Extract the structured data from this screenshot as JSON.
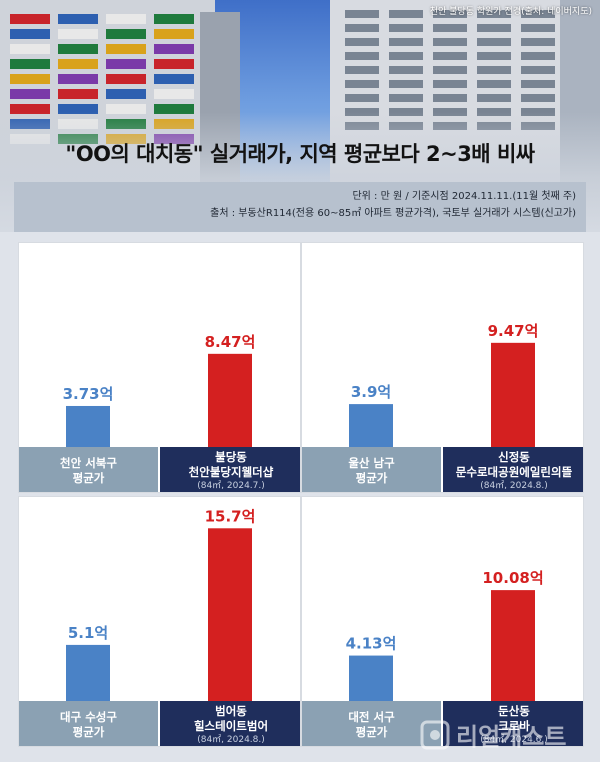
{
  "photo_credit": "천안 불당동 학원가 전경(출처: 네이버지도)",
  "title": "\"OO의 대치동\" 실거래가, 지역 평균보다 2~3배 비싸",
  "info": {
    "unit": "단위 : 만 원 / 기준시점 2024.11.11.(11월 첫째 주)",
    "source": "출처 : 부동산R114(전용 60~85㎡ 아파트 평균가격), 국토부 실거래가 시스템(신고가)"
  },
  "watermark": "리얼캐스트",
  "colors": {
    "average": "#4a82c6",
    "apartment": "#d42020",
    "avg_label_bg": "#8ba1b3",
    "apt_label_bg": "#1f2e5c"
  },
  "chart_data": [
    {
      "type": "bar",
      "categories": [
        "천안 서북구 평균가",
        "불당동 천안불당지웰더샵"
      ],
      "values": [
        3.73,
        8.47
      ],
      "data_labels": [
        "3.73억",
        "8.47억"
      ],
      "avg_label": {
        "line1": "천안 서북구",
        "line2": "평균가"
      },
      "apt_label": {
        "line1": "불당동",
        "line2": "천안불당지웰더샵",
        "note": "(84㎡, 2024.7.)"
      },
      "ylim": [
        0,
        16
      ]
    },
    {
      "type": "bar",
      "categories": [
        "울산 남구 평균가",
        "신정동 문수로대공원에일린의뜰"
      ],
      "values": [
        3.9,
        9.47
      ],
      "data_labels": [
        "3.9억",
        "9.47억"
      ],
      "avg_label": {
        "line1": "울산 남구",
        "line2": "평균가"
      },
      "apt_label": {
        "line1": "신정동",
        "line2": "문수로대공원에일린의뜰",
        "note": "(84㎡, 2024.8.)"
      },
      "ylim": [
        0,
        16
      ]
    },
    {
      "type": "bar",
      "categories": [
        "대구 수성구 평균가",
        "범어동 힐스테이트범어"
      ],
      "values": [
        5.1,
        15.7
      ],
      "data_labels": [
        "5.1억",
        "15.7억"
      ],
      "avg_label": {
        "line1": "대구 수성구",
        "line2": "평균가"
      },
      "apt_label": {
        "line1": "범어동",
        "line2": "힐스테이트범어",
        "note": "(84㎡, 2024.8.)"
      },
      "ylim": [
        0,
        16
      ]
    },
    {
      "type": "bar",
      "categories": [
        "대전 서구 평균가",
        "둔산동 크로바"
      ],
      "values": [
        4.13,
        10.08
      ],
      "data_labels": [
        "4.13억",
        "10.08억"
      ],
      "avg_label": {
        "line1": "대전 서구",
        "line2": "평균가"
      },
      "apt_label": {
        "line1": "둔산동",
        "line2": "크로바",
        "note": "(84㎡, 2024.6.)"
      },
      "ylim": [
        0,
        16
      ]
    }
  ]
}
